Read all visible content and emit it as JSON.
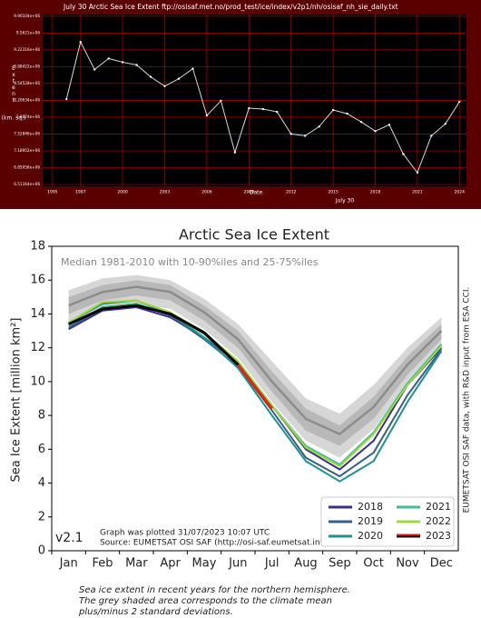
{
  "chart_data": [
    {
      "type": "line",
      "title": "July 30 Arctic Sea Ice Extent    ftp://osisaf.met.no/prod_test/ice/index/v2p1/nh/osisaf_nh_sie_daily.txt",
      "ylabel": "Extent",
      "ylabel_unit": "(km. sq.)",
      "xlabel": "Date",
      "xlabel_sub": "July 30",
      "x": [
        1996,
        1997,
        1998,
        1999,
        2000,
        2001,
        2002,
        2003,
        2004,
        2005,
        2006,
        2007,
        2008,
        2009,
        2010,
        2011,
        2012,
        2013,
        2014,
        2015,
        2016,
        2017,
        2018,
        2019,
        2020,
        2021,
        2022,
        2023,
        2024
      ],
      "values": [
        8234000,
        9382000,
        8827000,
        9049000,
        8975000,
        8919000,
        8679000,
        8493000,
        8642000,
        8845000,
        7901000,
        8197000,
        7160000,
        8049000,
        8030000,
        7975000,
        7530000,
        7493000,
        7678000,
        8012000,
        7938000,
        7771000,
        7586000,
        7715000,
        7123000,
        6752000,
        7493000,
        7734000,
        8179000
      ],
      "color": "#d8d8d8",
      "markers": true,
      "grid": true,
      "xlim": [
        1994.3,
        2024.5
      ],
      "xticks": [
        1995,
        1997,
        2000,
        2003,
        2006,
        2009,
        2012,
        2015,
        2018,
        2021,
        2024
      ],
      "ylim": [
        6475000,
        9935000
      ],
      "yticks": [
        {
          "value": 6511640,
          "label": "6.51164e+06"
        },
        {
          "value": 6850580,
          "label": "6.85058e+06"
        },
        {
          "value": 7189520,
          "label": "7.18952e+06"
        },
        {
          "value": 7528460,
          "label": "7.52846e+06"
        },
        {
          "value": 7867400,
          "label": "7.8674e+06"
        },
        {
          "value": 8206340,
          "label": "8.20634e+06"
        },
        {
          "value": 8545280,
          "label": "8.54528e+06"
        },
        {
          "value": 8884220,
          "label": "8.88422e+06"
        },
        {
          "value": 9223160,
          "label": "9.22316e+06"
        },
        {
          "value": 9562100,
          "label": "9.5621e+06"
        },
        {
          "value": 9901040,
          "label": "9.90104e+06"
        }
      ]
    },
    {
      "type": "line",
      "title": "Arctic Sea Ice Extent",
      "subtitle": "Median 1981-2010 with 10-90%iles and 25-75%iles",
      "ylabel": "Sea Ice Extent [million km²]",
      "version": "v2.1",
      "note": [
        "Graph was plotted 31/07/2023 10:07 UTC",
        "Source: EUMETSAT OSI SAF (http://osi-saf.eumetsat.int)"
      ],
      "side_note": "EUMETSAT OSI SAF data, with R&D input from ESA CCI.",
      "categories": [
        "Jan",
        "Feb",
        "Mar",
        "Apr",
        "May",
        "Jun",
        "Jul",
        "Aug",
        "Sep",
        "Oct",
        "Nov",
        "Dec"
      ],
      "median": [
        14.5,
        15.3,
        15.6,
        15.3,
        14.1,
        12.5,
        10.0,
        7.8,
        6.9,
        8.5,
        11.0,
        13.0
      ],
      "p10": [
        13.5,
        14.3,
        14.6,
        14.3,
        13.1,
        11.4,
        8.8,
        6.5,
        5.5,
        7.2,
        9.9,
        12.0
      ],
      "p25": [
        14.0,
        14.8,
        15.1,
        14.8,
        13.6,
        12.0,
        9.4,
        7.1,
        6.2,
        7.8,
        10.4,
        12.5
      ],
      "p75": [
        15.0,
        15.7,
        16.0,
        15.7,
        14.5,
        13.0,
        10.6,
        8.4,
        7.4,
        9.1,
        11.5,
        13.4
      ],
      "p90": [
        15.4,
        16.1,
        16.3,
        16.0,
        14.9,
        13.4,
        11.2,
        9.0,
        8.1,
        9.8,
        12.0,
        13.8
      ],
      "band_colors": {
        "outer": "#d6d6d6",
        "inner": "#b8b8b8",
        "median": "#8c8c8c"
      },
      "series": [
        {
          "name": "2018",
          "color": "#3b2e8c",
          "values": [
            13.1,
            14.2,
            14.4,
            13.8,
            12.6,
            11.1,
            8.6,
            6.0,
            4.8,
            6.5,
            9.8,
            12.0
          ]
        },
        {
          "name": "2019",
          "color": "#355f8d",
          "values": [
            13.2,
            14.3,
            14.6,
            13.9,
            12.5,
            10.9,
            8.3,
            5.5,
            4.4,
            5.8,
            9.2,
            11.9
          ]
        },
        {
          "name": "2020",
          "color": "#23908c",
          "values": [
            13.5,
            14.6,
            14.8,
            14.0,
            12.6,
            10.8,
            8.0,
            5.3,
            4.1,
            5.3,
            8.8,
            11.8
          ]
        },
        {
          "name": "2021",
          "color": "#3cbf93",
          "values": [
            13.3,
            14.4,
            14.6,
            14.0,
            12.8,
            11.0,
            8.6,
            6.2,
            5.1,
            7.0,
            9.9,
            12.2
          ]
        },
        {
          "name": "2022",
          "color": "#9ed93a",
          "values": [
            13.5,
            14.7,
            14.8,
            14.1,
            12.9,
            11.2,
            8.6,
            6.1,
            5.0,
            6.9,
            9.8,
            12.1
          ]
        },
        {
          "name": "2023",
          "color": "#000000",
          "recent_color": "#e3241b",
          "values": [
            13.4,
            14.3,
            14.5,
            14.0,
            12.9,
            11.0,
            8.4,
            null,
            null,
            null,
            null,
            null
          ]
        }
      ],
      "legend": "lower right",
      "ylim": [
        0,
        18
      ],
      "yticks": [
        0,
        2,
        4,
        6,
        8,
        10,
        12,
        14,
        16,
        18
      ]
    }
  ],
  "caption": [
    "Sea ice extent in recent years for the northern hemisphere.",
    "The grey shaded area corresponds to the climate mean",
    "plus/minus 2 standard deviations."
  ]
}
